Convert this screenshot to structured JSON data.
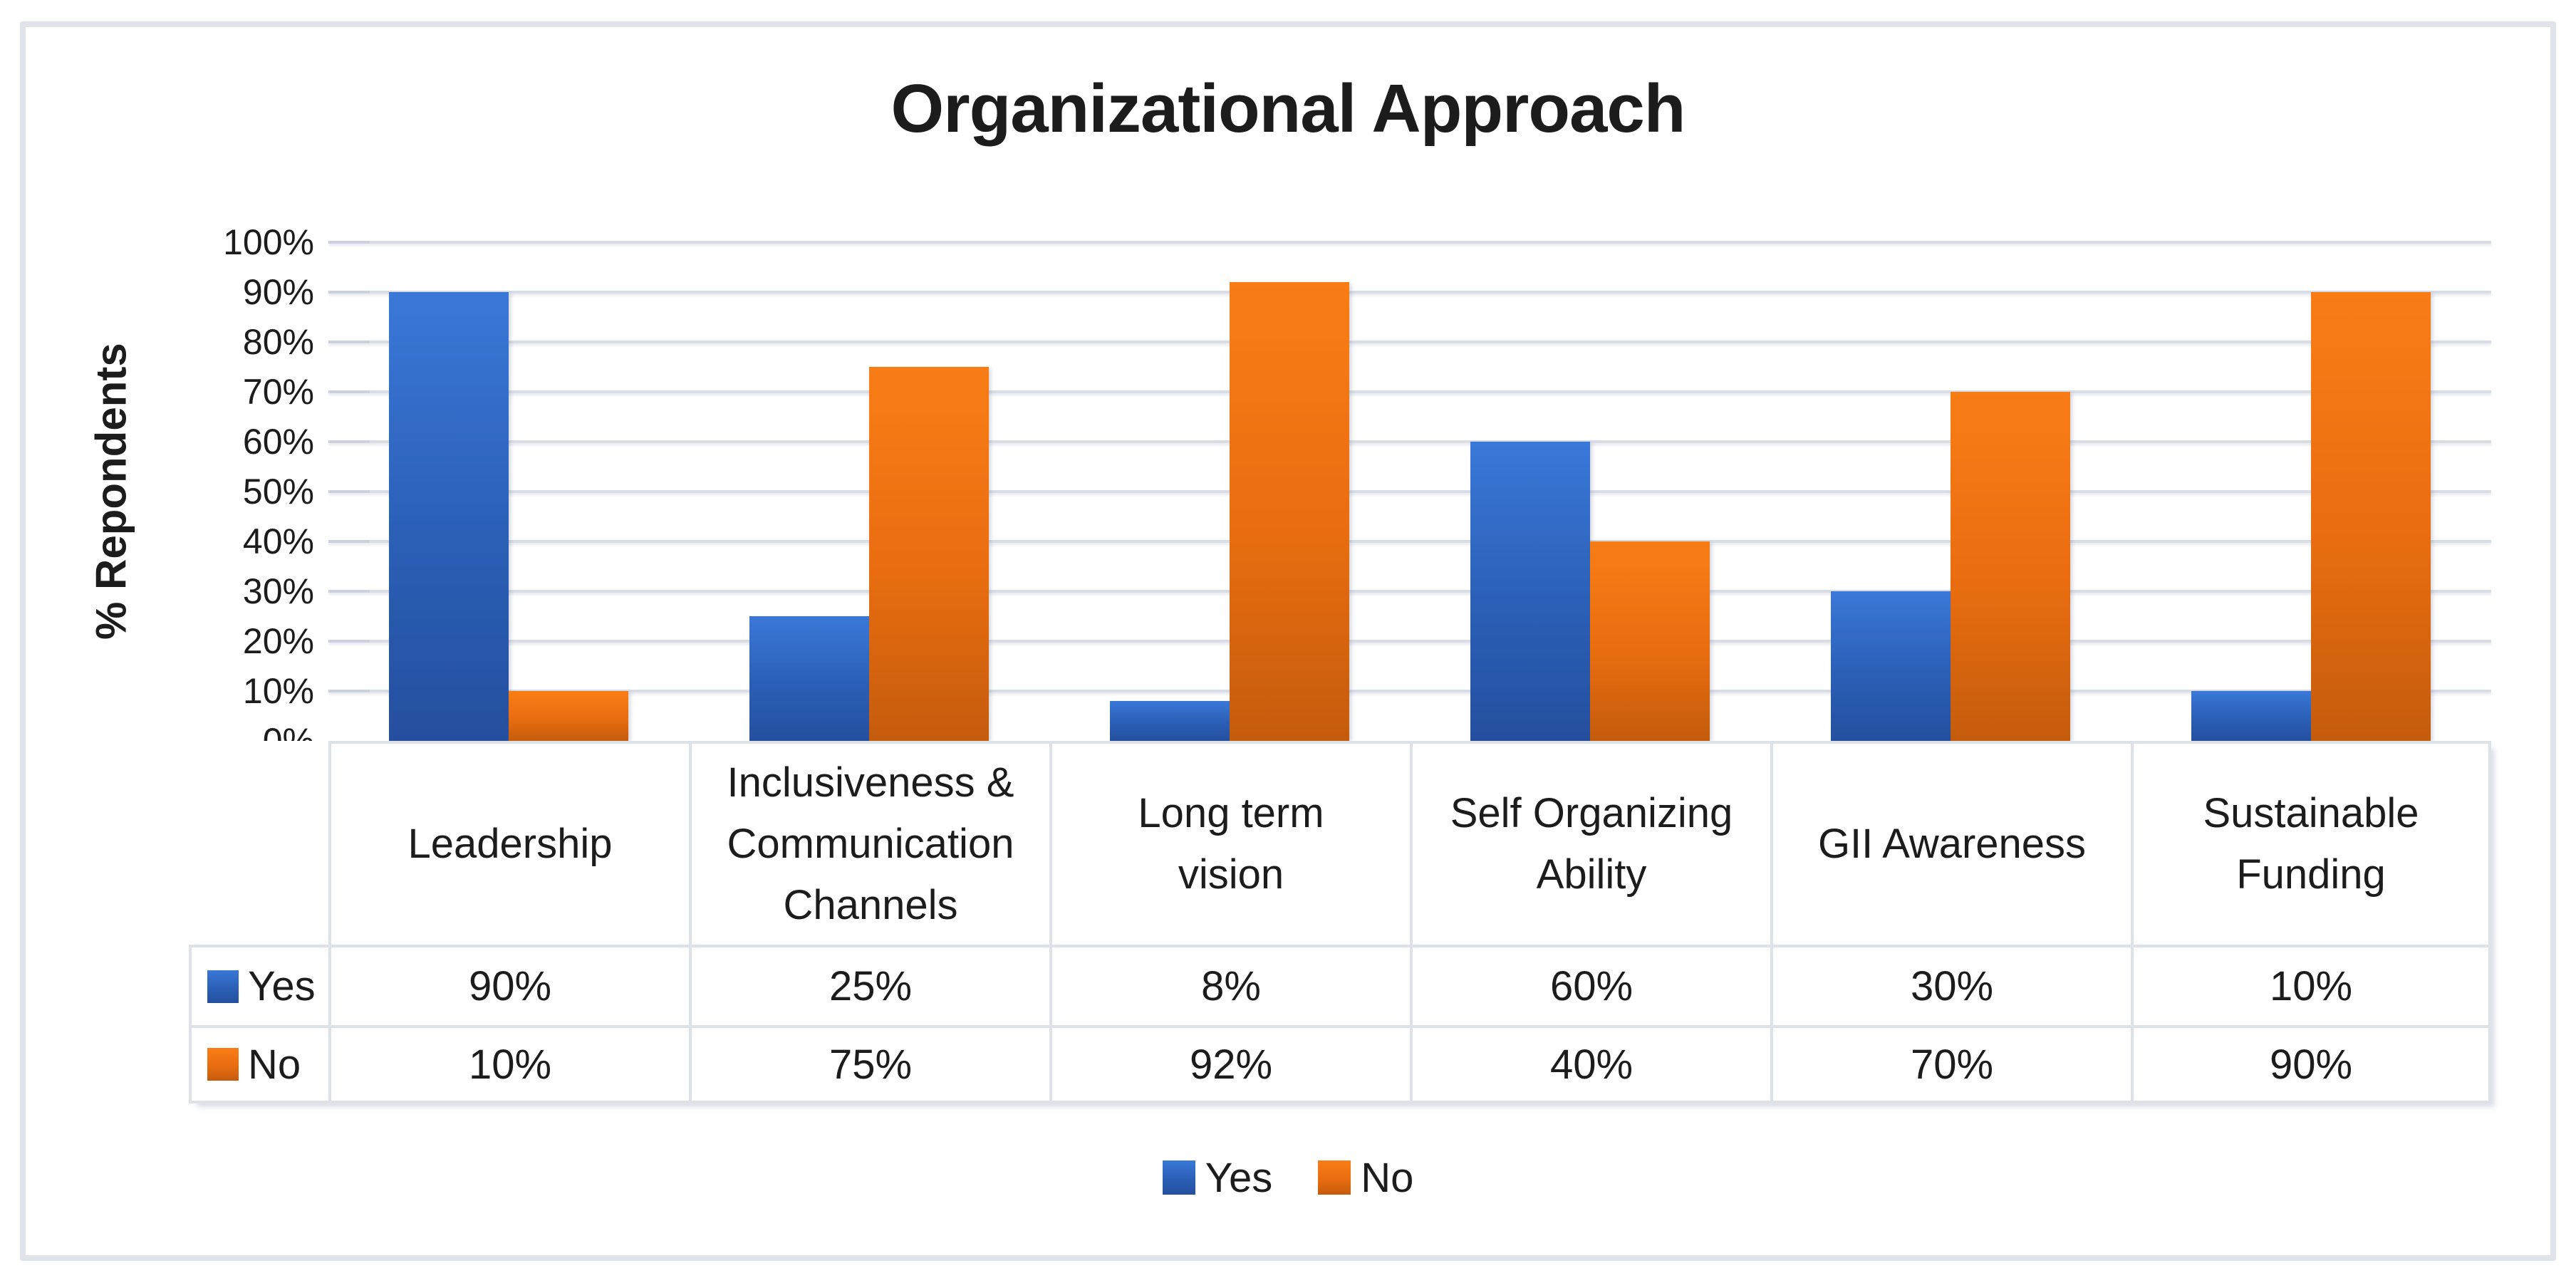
{
  "chart_data": {
    "type": "bar",
    "title": "Organizational Approach",
    "ylabel": "% Repondents",
    "xlabel": "",
    "categories": [
      "Leadership",
      "Inclusiveness & Communication Channels",
      "Long term vision",
      "Self Organizing Ability",
      "GII Awareness",
      "Sustainable Funding"
    ],
    "category_lines": [
      [
        "Leadership"
      ],
      [
        "Inclusiveness &",
        "Communication",
        "Channels"
      ],
      [
        "Long term",
        "vision"
      ],
      [
        "Self Organizing",
        "Ability"
      ],
      [
        "GII Awareness"
      ],
      [
        "Sustainable",
        "Funding"
      ]
    ],
    "series": [
      {
        "name": "Yes",
        "values": [
          90,
          25,
          8,
          60,
          30,
          10
        ],
        "display": [
          "90%",
          "25%",
          "8%",
          "60%",
          "30%",
          "10%"
        ],
        "color_top": "#3a78d8",
        "color_mid": "#2b5fb6",
        "color_bottom": "#254f9e"
      },
      {
        "name": "No",
        "values": [
          10,
          75,
          92,
          40,
          70,
          90
        ],
        "display": [
          "10%",
          "75%",
          "92%",
          "40%",
          "70%",
          "90%"
        ],
        "color_top": "#f97d16",
        "color_mid": "#e96d10",
        "color_bottom": "#c45c0d"
      }
    ],
    "ylim": [
      0,
      100
    ],
    "yticks": [
      {
        "value": 0,
        "label": "0%"
      },
      {
        "value": 10,
        "label": "10%"
      },
      {
        "value": 20,
        "label": "20%"
      },
      {
        "value": 30,
        "label": "30%"
      },
      {
        "value": 40,
        "label": "40%"
      },
      {
        "value": 50,
        "label": "50%"
      },
      {
        "value": 60,
        "label": "60%"
      },
      {
        "value": 70,
        "label": "70%"
      },
      {
        "value": 80,
        "label": "80%"
      },
      {
        "value": 90,
        "label": "90%"
      },
      {
        "value": 100,
        "label": "100%"
      }
    ],
    "grid": true,
    "legend_position": "bottom",
    "has_data_table": true
  },
  "colors": {
    "background": "#ffffff",
    "text": "#1c1c1c",
    "frame_border": "#e0e4ea",
    "grid_line": "#d9dde6",
    "grid_tick": "#ccd2dd",
    "table_line": "#dde1e8"
  }
}
